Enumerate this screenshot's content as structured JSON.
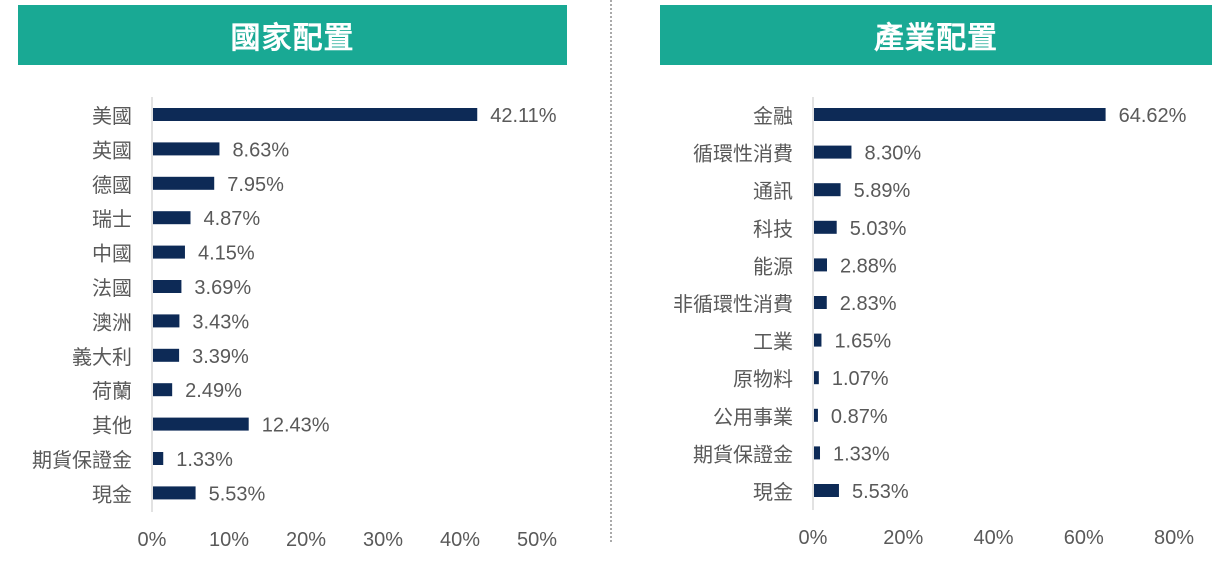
{
  "chart_data": [
    {
      "type": "bar",
      "orientation": "horizontal",
      "title": "國家配置",
      "categories": [
        "美國",
        "英國",
        "德國",
        "瑞士",
        "中國",
        "法國",
        "澳洲",
        "義大利",
        "荷蘭",
        "其他",
        "期貨保證金",
        "現金"
      ],
      "values": [
        42.11,
        8.63,
        7.95,
        4.87,
        4.15,
        3.69,
        3.43,
        3.39,
        2.49,
        12.43,
        1.33,
        5.53
      ],
      "value_labels": [
        "42.11%",
        "8.63%",
        "7.95%",
        "4.87%",
        "4.15%",
        "3.69%",
        "3.43%",
        "3.39%",
        "2.49%",
        "12.43%",
        "1.33%",
        "5.53%"
      ],
      "xlim": [
        0,
        50
      ],
      "xticks": [
        "0%",
        "10%",
        "20%",
        "30%",
        "40%",
        "50%"
      ],
      "grid": false
    },
    {
      "type": "bar",
      "orientation": "horizontal",
      "title": "產業配置",
      "categories": [
        "金融",
        "循環性消費",
        "通訊",
        "科技",
        "能源",
        "非循環性消費",
        "工業",
        "原物料",
        "公用事業",
        "期貨保證金",
        "現金"
      ],
      "values": [
        64.62,
        8.3,
        5.89,
        5.03,
        2.88,
        2.83,
        1.65,
        1.07,
        0.87,
        1.33,
        5.53
      ],
      "value_labels": [
        "64.62%",
        "8.30%",
        "5.89%",
        "5.03%",
        "2.88%",
        "2.83%",
        "1.65%",
        "1.07%",
        "0.87%",
        "1.33%",
        "5.53%"
      ],
      "xlim": [
        0,
        80
      ],
      "xticks": [
        "0%",
        "20%",
        "40%",
        "60%",
        "80%"
      ],
      "grid": false
    }
  ],
  "colors": {
    "banner": "#19a994",
    "bar": "#0d2a56",
    "text": "#595959"
  }
}
